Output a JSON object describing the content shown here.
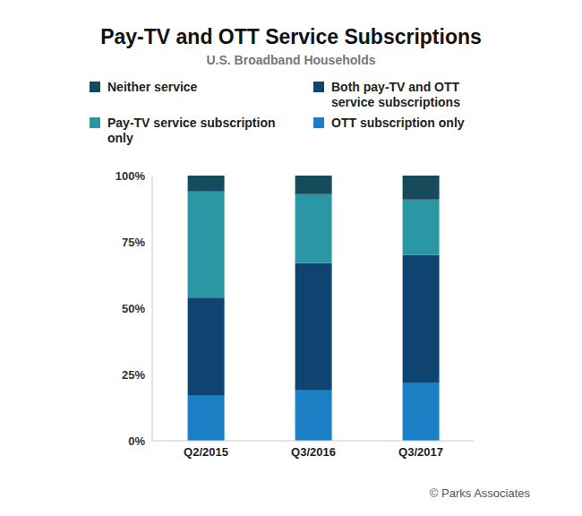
{
  "chart_data": {
    "type": "bar",
    "title": "Pay-TV and OTT Service Subscriptions",
    "subtitle": "U.S. Broadband Households",
    "source": "© Parks Associates",
    "categories": [
      "Q2/2015",
      "Q3/2016",
      "Q3/2017"
    ],
    "series": [
      {
        "name": "OTT subscription only",
        "color": "#1b7fc4",
        "values": [
          17,
          19,
          22
        ]
      },
      {
        "name": "Both pay-TV and OTT service subscriptions",
        "color": "#0f4470",
        "values": [
          37,
          48,
          48
        ]
      },
      {
        "name": "Pay-TV service subscription only",
        "color": "#2a97a5",
        "values": [
          40,
          26,
          21
        ]
      },
      {
        "name": "Neither service",
        "color": "#164b5b",
        "values": [
          6,
          7,
          9
        ]
      }
    ],
    "ylim": [
      0,
      100
    ],
    "yticks": [
      {
        "value": 0,
        "label": "0%"
      },
      {
        "value": 25,
        "label": "25%"
      },
      {
        "value": 50,
        "label": "50%"
      },
      {
        "value": 75,
        "label": "75%"
      },
      {
        "value": 100,
        "label": "100%"
      }
    ],
    "stacked": true,
    "grid": false,
    "legend": "top"
  }
}
